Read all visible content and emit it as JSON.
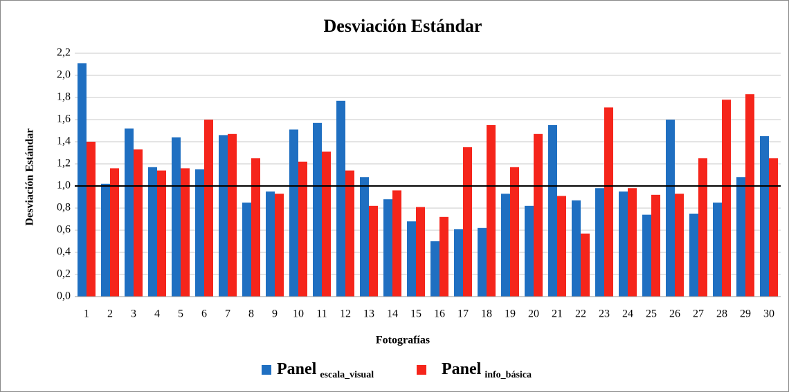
{
  "chart_data": {
    "type": "bar",
    "title": "Desviación Estándar",
    "xlabel": "Fotografías",
    "ylabel": "Desviación Estándar",
    "categories": [
      "1",
      "2",
      "3",
      "4",
      "5",
      "6",
      "7",
      "8",
      "9",
      "10",
      "11",
      "12",
      "13",
      "14",
      "15",
      "16",
      "17",
      "18",
      "19",
      "20",
      "21",
      "22",
      "23",
      "24",
      "25",
      "26",
      "27",
      "28",
      "29",
      "30"
    ],
    "series": [
      {
        "name": "Panel",
        "subscript": "escala_visual",
        "color": "#1f6fc1",
        "values": [
          2.11,
          1.02,
          1.52,
          1.17,
          1.44,
          1.15,
          1.46,
          0.85,
          0.95,
          1.51,
          1.57,
          1.77,
          1.08,
          0.88,
          0.68,
          0.5,
          0.61,
          0.62,
          0.93,
          0.82,
          1.55,
          0.87,
          0.98,
          0.95,
          0.74,
          1.6,
          0.75,
          0.85,
          1.08,
          1.45
        ]
      },
      {
        "name": "Panel",
        "subscript": "info_básica",
        "color": "#f5251b",
        "values": [
          1.4,
          1.16,
          1.33,
          1.14,
          1.16,
          1.6,
          1.47,
          1.25,
          0.93,
          1.22,
          1.31,
          1.14,
          0.82,
          0.96,
          0.81,
          0.72,
          1.35,
          1.55,
          1.17,
          1.47,
          0.91,
          0.57,
          1.71,
          0.98,
          0.92,
          0.93,
          1.25,
          1.78,
          1.83,
          1.25
        ]
      }
    ],
    "ylim": [
      0,
      2.2
    ],
    "yticks": [
      {
        "value": 0,
        "label": "0,0"
      },
      {
        "value": 0.2,
        "label": "0,2"
      },
      {
        "value": 0.4,
        "label": "0,4"
      },
      {
        "value": 0.6,
        "label": "0,6"
      },
      {
        "value": 0.8,
        "label": "0,8"
      },
      {
        "value": 1,
        "label": "1,0"
      },
      {
        "value": 1.2,
        "label": "1,2"
      },
      {
        "value": 1.4,
        "label": "1,4"
      },
      {
        "value": 1.6,
        "label": "1,6"
      },
      {
        "value": 1.8,
        "label": "1,8"
      },
      {
        "value": 2,
        "label": "2,0"
      },
      {
        "value": 2.2,
        "label": "2,2"
      }
    ],
    "reference_line": 1,
    "grid": true,
    "legend": "bottom"
  }
}
